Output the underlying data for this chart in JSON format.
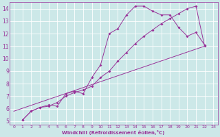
{
  "background_color": "#cce8e8",
  "grid_color": "#b0d0d0",
  "line_color": "#993399",
  "marker": "D",
  "marker_size": 2.0,
  "xlabel": "Windchill (Refroidissement éolien,°C)",
  "xlim": [
    -0.5,
    23.5
  ],
  "ylim": [
    4.7,
    14.5
  ],
  "xticks": [
    0,
    1,
    2,
    3,
    4,
    5,
    6,
    7,
    8,
    9,
    10,
    11,
    12,
    13,
    14,
    15,
    16,
    17,
    18,
    19,
    20,
    21,
    22,
    23
  ],
  "yticks": [
    5,
    6,
    7,
    8,
    9,
    10,
    11,
    12,
    13,
    14
  ],
  "line1_x": [
    1,
    2,
    3,
    4,
    5,
    6,
    7,
    8,
    9,
    10,
    11,
    12,
    13,
    14,
    15,
    16,
    17,
    18,
    19,
    20,
    21,
    22
  ],
  "line1_y": [
    5.1,
    5.8,
    6.1,
    6.3,
    6.2,
    7.2,
    7.4,
    7.2,
    8.5,
    9.5,
    12.0,
    12.4,
    13.5,
    14.2,
    14.2,
    13.8,
    13.5,
    13.5,
    12.5,
    11.8,
    12.1,
    11.1
  ],
  "line2_x": [
    1,
    2,
    3,
    4,
    5,
    6,
    7,
    8,
    9,
    10,
    11,
    12,
    13,
    14,
    15,
    16,
    17,
    18,
    19,
    20,
    21,
    22
  ],
  "line2_y": [
    5.1,
    5.8,
    6.1,
    6.2,
    6.5,
    7.0,
    7.3,
    7.5,
    7.8,
    8.5,
    9.0,
    9.8,
    10.5,
    11.2,
    11.8,
    12.3,
    12.8,
    13.2,
    13.6,
    14.0,
    14.2,
    11.0
  ],
  "line3_x": [
    0,
    22
  ],
  "line3_y": [
    5.8,
    11.0
  ]
}
